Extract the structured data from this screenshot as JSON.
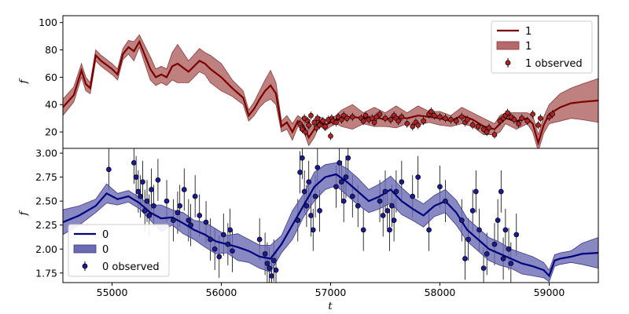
{
  "chart_data": [
    {
      "type": "line",
      "xlabel": "",
      "ylabel": "f",
      "xlim": [
        54550,
        59450
      ],
      "ylim": [
        8,
        105
      ],
      "yticks": [
        20,
        40,
        60,
        80,
        100
      ],
      "legend": {
        "placement": "top-right",
        "entries": [
          "1",
          "1",
          "1 observed"
        ]
      },
      "colors": {
        "line": "#7b0000",
        "band": "#b46a6a",
        "points": "#b22222"
      },
      "series": [
        {
          "name": "1",
          "kind": "mean",
          "x": [
            54550,
            54650,
            54720,
            54760,
            54800,
            54850,
            54900,
            55000,
            55050,
            55100,
            55150,
            55200,
            55250,
            55300,
            55350,
            55400,
            55450,
            55500,
            55550,
            55600,
            55700,
            55800,
            55850,
            55900,
            56000,
            56100,
            56200,
            56250,
            56300,
            56350,
            56400,
            56450,
            56500,
            56550,
            56600,
            56650,
            56700,
            56750,
            56800,
            56850,
            56900,
            56950,
            57000,
            57050,
            57100,
            57200,
            57300,
            57400,
            57500,
            57600,
            57700,
            57800,
            57900,
            58000,
            58100,
            58200,
            58300,
            58400,
            58500,
            58550,
            58600,
            58700,
            58800,
            58850,
            58900,
            58950,
            59000,
            59100,
            59200,
            59300,
            59450
          ],
          "y": [
            38,
            47,
            65,
            55,
            52,
            76,
            72,
            66,
            62,
            77,
            82,
            79,
            86,
            76,
            66,
            60,
            62,
            60,
            68,
            70,
            64,
            72,
            70,
            66,
            60,
            52,
            45,
            32,
            37,
            44,
            50,
            54,
            48,
            24,
            27,
            20,
            28,
            25,
            16,
            22,
            28,
            25,
            27,
            29,
            30,
            31,
            30,
            31,
            29,
            31,
            30,
            32,
            31,
            30,
            28,
            32,
            29,
            24,
            22,
            26,
            30,
            28,
            30,
            26,
            12,
            25,
            33,
            38,
            41,
            42,
            43
          ]
        },
        {
          "name": "1",
          "kind": "band",
          "x": [
            54550,
            54650,
            54720,
            54760,
            54800,
            54850,
            54900,
            55000,
            55050,
            55100,
            55150,
            55200,
            55250,
            55300,
            55350,
            55400,
            55450,
            55500,
            55550,
            55600,
            55700,
            55800,
            55850,
            55900,
            56000,
            56100,
            56200,
            56250,
            56300,
            56350,
            56400,
            56450,
            56500,
            56550,
            56600,
            56650,
            56700,
            56750,
            56800,
            56850,
            56900,
            56950,
            57000,
            57050,
            57100,
            57200,
            57300,
            57400,
            57500,
            57600,
            57700,
            57800,
            57900,
            58000,
            58100,
            58200,
            58300,
            58400,
            58500,
            58550,
            58600,
            58700,
            58800,
            58850,
            58900,
            58950,
            59000,
            59100,
            59200,
            59300,
            59450
          ],
          "lower": [
            32,
            42,
            60,
            50,
            48,
            72,
            68,
            62,
            58,
            73,
            77,
            72,
            82,
            70,
            58,
            54,
            56,
            54,
            58,
            56,
            56,
            64,
            62,
            56,
            50,
            46,
            40,
            28,
            32,
            38,
            42,
            44,
            40,
            20,
            22,
            14,
            24,
            21,
            10,
            16,
            25,
            21,
            24,
            26,
            24,
            22,
            26,
            24,
            24,
            23,
            26,
            25,
            27,
            25,
            24,
            26,
            24,
            18,
            18,
            20,
            26,
            22,
            26,
            20,
            6,
            19,
            26,
            28,
            30,
            29,
            27
          ],
          "upper": [
            44,
            53,
            70,
            60,
            56,
            80,
            76,
            70,
            66,
            81,
            87,
            86,
            91,
            83,
            75,
            66,
            68,
            66,
            78,
            84,
            72,
            81,
            78,
            76,
            70,
            58,
            50,
            36,
            42,
            50,
            58,
            65,
            56,
            28,
            32,
            26,
            32,
            29,
            22,
            28,
            31,
            29,
            30,
            32,
            36,
            40,
            34,
            38,
            34,
            39,
            34,
            39,
            35,
            35,
            32,
            38,
            34,
            30,
            26,
            32,
            34,
            34,
            34,
            32,
            18,
            31,
            40,
            48,
            52,
            55,
            59
          ]
        },
        {
          "name": "1 observed",
          "kind": "observed",
          "x": [
            56720,
            56740,
            56760,
            56770,
            56790,
            56800,
            56820,
            56850,
            56870,
            56880,
            56900,
            56930,
            56950,
            56980,
            57000,
            57010,
            57020,
            57050,
            57070,
            57100,
            57120,
            57150,
            57200,
            57280,
            57300,
            57320,
            57350,
            57380,
            57400,
            57420,
            57450,
            57500,
            57550,
            57580,
            57600,
            57620,
            57650,
            57700,
            57750,
            57780,
            57800,
            57850,
            57900,
            57920,
            57950,
            58000,
            58050,
            58100,
            58150,
            58200,
            58230,
            58250,
            58300,
            58350,
            58400,
            58430,
            58450,
            58500,
            58550,
            58580,
            58600,
            58620,
            58650,
            58680,
            58720,
            58750,
            58800,
            58850,
            58900,
            58920,
            59000,
            59030
          ],
          "y": [
            26,
            22,
            30,
            20,
            28,
            25,
            32,
            27,
            23,
            30,
            25,
            28,
            24,
            29,
            17,
            30,
            28,
            27,
            31,
            29,
            32,
            30,
            31,
            30,
            28,
            32,
            29,
            30,
            27,
            31,
            33,
            30,
            29,
            32,
            30,
            28,
            31,
            26,
            24,
            27,
            25,
            28,
            33,
            35,
            32,
            31,
            30,
            29,
            28,
            31,
            27,
            29,
            25,
            24,
            22,
            20,
            23,
            18,
            28,
            30,
            32,
            34,
            31,
            29,
            26,
            30,
            28,
            33,
            25,
            30,
            31,
            33
          ]
        }
      ]
    },
    {
      "type": "line",
      "xlabel": "t",
      "ylabel": "f",
      "xlim": [
        54550,
        59450
      ],
      "ylim": [
        1.65,
        3.05
      ],
      "xticks": [
        55000,
        56000,
        57000,
        58000,
        59000
      ],
      "yticks": [
        1.75,
        2.0,
        2.25,
        2.5,
        2.75,
        3.0
      ],
      "legend": {
        "placement": "bottom-left",
        "entries": [
          "0",
          "0",
          "0 observed"
        ]
      },
      "colors": {
        "line": "#00007f",
        "band": "#6a6ab4",
        "points": "#1a1a99"
      },
      "series": [
        {
          "name": "0",
          "kind": "mean",
          "x": [
            54550,
            54700,
            54850,
            54950,
            55050,
            55150,
            55250,
            55350,
            55450,
            55550,
            55650,
            55750,
            55850,
            55950,
            56050,
            56150,
            56250,
            56350,
            56450,
            56550,
            56650,
            56750,
            56850,
            56950,
            57050,
            57150,
            57250,
            57350,
            57450,
            57550,
            57650,
            57750,
            57850,
            57950,
            58050,
            58150,
            58250,
            58350,
            58450,
            58550,
            58650,
            58750,
            58850,
            58950,
            59000,
            59050,
            59100,
            59200,
            59300,
            59450
          ],
          "y": [
            2.28,
            2.35,
            2.45,
            2.58,
            2.52,
            2.55,
            2.48,
            2.38,
            2.32,
            2.33,
            2.27,
            2.2,
            2.15,
            2.08,
            2.05,
            2.02,
            1.98,
            1.92,
            1.9,
            2.05,
            2.25,
            2.45,
            2.65,
            2.75,
            2.78,
            2.7,
            2.6,
            2.5,
            2.55,
            2.62,
            2.5,
            2.42,
            2.35,
            2.45,
            2.5,
            2.38,
            2.2,
            2.1,
            2.0,
            1.95,
            1.9,
            1.85,
            1.82,
            1.78,
            1.72,
            1.88,
            1.9,
            1.92,
            1.95,
            1.96
          ]
        },
        {
          "name": "0",
          "kind": "band",
          "x": [
            54550,
            54700,
            54850,
            54950,
            55050,
            55150,
            55250,
            55350,
            55450,
            55550,
            55650,
            55750,
            55850,
            55950,
            56050,
            56150,
            56250,
            56350,
            56450,
            56550,
            56650,
            56750,
            56850,
            56950,
            57050,
            57150,
            57250,
            57350,
            57450,
            57550,
            57650,
            57750,
            57850,
            57950,
            58050,
            58150,
            58250,
            58350,
            58450,
            58550,
            58650,
            58750,
            58850,
            58950,
            59000,
            59050,
            59100,
            59200,
            59300,
            59450
          ],
          "lower": [
            2.15,
            2.25,
            2.38,
            2.48,
            2.46,
            2.49,
            2.42,
            2.3,
            2.18,
            2.25,
            2.16,
            2.1,
            2.02,
            1.95,
            1.96,
            1.88,
            1.86,
            1.8,
            1.76,
            1.96,
            2.1,
            2.33,
            2.5,
            2.62,
            2.66,
            2.56,
            2.46,
            2.38,
            2.42,
            2.48,
            2.36,
            2.3,
            2.23,
            2.34,
            2.38,
            2.25,
            2.08,
            1.98,
            1.88,
            1.83,
            1.8,
            1.74,
            1.72,
            1.7,
            1.66,
            1.82,
            1.84,
            1.86,
            1.84,
            1.8
          ],
          "upper": [
            2.41,
            2.45,
            2.52,
            2.68,
            2.58,
            2.61,
            2.54,
            2.46,
            2.46,
            2.41,
            2.38,
            2.3,
            2.28,
            2.21,
            2.14,
            2.16,
            2.1,
            2.04,
            2.04,
            2.14,
            2.4,
            2.57,
            2.8,
            2.88,
            2.9,
            2.84,
            2.74,
            2.62,
            2.68,
            2.76,
            2.64,
            2.54,
            2.47,
            2.56,
            2.62,
            2.51,
            2.32,
            2.22,
            2.12,
            2.07,
            2.0,
            1.96,
            1.92,
            1.86,
            1.78,
            1.94,
            1.96,
            1.98,
            2.06,
            2.12
          ]
        },
        {
          "name": "0 observed",
          "kind": "observed",
          "x": [
            54970,
            55200,
            55220,
            55240,
            55260,
            55280,
            55300,
            55320,
            55340,
            55360,
            55380,
            55420,
            55500,
            55560,
            55600,
            55620,
            55660,
            55700,
            55720,
            55760,
            55800,
            55860,
            55900,
            55940,
            55980,
            56020,
            56060,
            56080,
            56100,
            56350,
            56400,
            56420,
            56440,
            56460,
            56480,
            56500,
            56700,
            56720,
            56740,
            56760,
            56780,
            56800,
            56820,
            56840,
            56860,
            56880,
            56900,
            57050,
            57080,
            57100,
            57120,
            57140,
            57160,
            57200,
            57250,
            57300,
            57450,
            57480,
            57500,
            57520,
            57540,
            57560,
            57580,
            57600,
            57650,
            57750,
            57800,
            57900,
            58000,
            58050,
            58200,
            58230,
            58260,
            58300,
            58330,
            58360,
            58400,
            58430,
            58500,
            58530,
            58560,
            58580,
            58600,
            58630,
            58650,
            58700
          ],
          "y": [
            2.83,
            2.9,
            2.75,
            2.6,
            2.55,
            2.7,
            2.4,
            2.5,
            2.35,
            2.62,
            2.45,
            2.72,
            2.5,
            2.3,
            2.38,
            2.45,
            2.62,
            2.3,
            2.25,
            2.55,
            2.35,
            2.28,
            2.1,
            2.0,
            1.92,
            2.15,
            2.05,
            2.2,
            1.98,
            2.1,
            1.95,
            1.85,
            1.8,
            1.72,
            1.88,
            1.78,
            2.3,
            2.8,
            2.95,
            2.6,
            2.45,
            2.7,
            2.35,
            2.2,
            2.55,
            2.85,
            2.4,
            2.65,
            2.9,
            2.7,
            2.5,
            2.75,
            2.95,
            2.55,
            2.45,
            2.2,
            2.5,
            2.35,
            2.6,
            2.4,
            2.2,
            2.45,
            2.3,
            2.6,
            2.7,
            2.55,
            2.75,
            2.2,
            2.65,
            2.5,
            2.3,
            1.9,
            2.1,
            2.4,
            2.6,
            2.2,
            1.8,
            1.95,
            2.05,
            2.3,
            2.6,
            1.9,
            2.2,
            2.0,
            1.85,
            2.15
          ]
        }
      ]
    }
  ]
}
